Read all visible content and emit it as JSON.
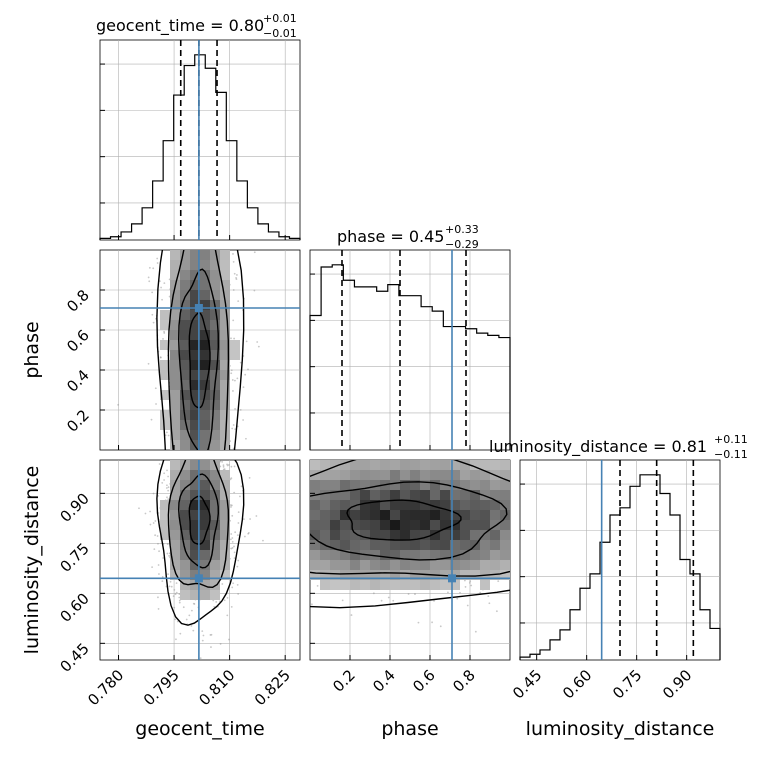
{
  "chart_data": {
    "type": "corner",
    "parameters": [
      "geocent_time",
      "phase",
      "luminosity_distance"
    ],
    "truths": [
      0.8017,
      0.71,
      0.645
    ],
    "colors": {
      "truth": "#4682b4",
      "hist": "#000000",
      "quantile": "#000000",
      "grid": "#b0b0b0"
    },
    "grid": true,
    "panels": {
      "geocent_time": {
        "title_main": "geocent_time = 0.80",
        "title_sup": "+0.01",
        "title_sub": "−0.01",
        "range": [
          0.775,
          0.829
        ],
        "ticks": [
          0.78,
          0.795,
          0.81,
          0.825
        ],
        "tick_labels": [
          "0.780",
          "0.795",
          "0.810",
          "0.825"
        ],
        "quantiles": [
          0.7968,
          0.8017,
          0.8066
        ],
        "hist": [
          0.3,
          0.6,
          1.5,
          3.0,
          6.0,
          11.0,
          18.5,
          27.0,
          32.5,
          34.5,
          32.0,
          27.5,
          18.5,
          11.0,
          6.0,
          3.0,
          1.5,
          0.6,
          0.3
        ]
      },
      "phase": {
        "title_main": "phase = 0.45",
        "title_sup": "+0.33",
        "title_sub": "−0.29",
        "range": [
          0.0,
          1.0
        ],
        "ticks": [
          0.2,
          0.4,
          0.6,
          0.8
        ],
        "tick_labels": [
          "0.2",
          "0.4",
          "0.6",
          "0.8"
        ],
        "y_tick_labels": [
          "0.2",
          "0.4",
          "0.6",
          "0.8"
        ],
        "quantiles": [
          0.16,
          0.45,
          0.78
        ],
        "hist": [
          610,
          830,
          840,
          770,
          740,
          740,
          720,
          750,
          700,
          700,
          650,
          630,
          560,
          560,
          550,
          530,
          520,
          510
        ]
      },
      "luminosity_distance": {
        "title_main": "luminosity_distance = 0.81",
        "title_sup": "+0.11",
        "title_sub": "−0.11",
        "range": [
          0.4,
          1.0
        ],
        "ticks": [
          0.45,
          0.6,
          0.75,
          0.9
        ],
        "tick_labels": [
          "0.45",
          "0.60",
          "0.75",
          "0.90"
        ],
        "y_tick_labels": [
          "0.45",
          "0.60",
          "0.75",
          "0.90"
        ],
        "quantiles": [
          0.7,
          0.81,
          0.92
        ],
        "hist": [
          2,
          4,
          7,
          14,
          21,
          35,
          50,
          60,
          82,
          101,
          106,
          121,
          129,
          129,
          116,
          101,
          70,
          60,
          35,
          22
        ]
      }
    },
    "x_axis_labels": [
      "geocent_time",
      "phase",
      "luminosity_distance"
    ],
    "y_axis_labels": [
      "phase",
      "luminosity_distance"
    ]
  }
}
